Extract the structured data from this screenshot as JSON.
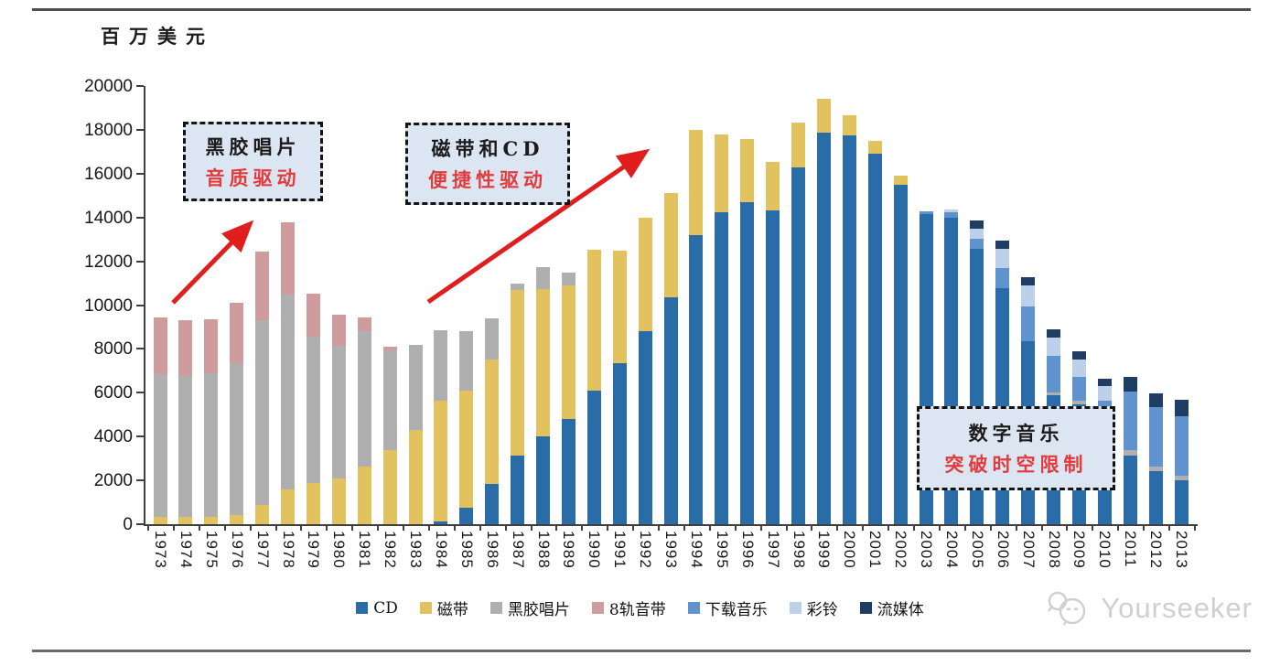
{
  "chart": {
    "unit_label": "百万美元"
  },
  "y_axis": {
    "ticks": [
      0,
      2000,
      4000,
      6000,
      8000,
      10000,
      12000,
      14000,
      16000,
      18000,
      20000
    ]
  },
  "legend": {
    "items": [
      {
        "key": "cd",
        "label": "CD"
      },
      {
        "key": "tape",
        "label": "磁带"
      },
      {
        "key": "vinyl",
        "label": "黑胶唱片"
      },
      {
        "key": "eight_track",
        "label": "8轨音带"
      },
      {
        "key": "download",
        "label": "下载音乐"
      },
      {
        "key": "ringtone",
        "label": "彩铃"
      },
      {
        "key": "streaming",
        "label": "流媒体"
      }
    ]
  },
  "annotations": [
    {
      "id": "vinyl-era",
      "line1": "黑胶唱片",
      "line2": "音质驱动"
    },
    {
      "id": "tape-cd-era",
      "line1": "磁带和CD",
      "line2": "便捷性驱动"
    },
    {
      "id": "digital-era",
      "line1": "数字音乐",
      "line2": "突破时空限制"
    }
  ],
  "watermark": {
    "text": "Yourseeker"
  },
  "colors": {
    "cd": "#2A6CA8",
    "tape": "#E2C25F",
    "vinyl": "#AFAFAF",
    "eight_track": "#CE9C9C",
    "download": "#5E93CE",
    "ringtone": "#BDD0E9",
    "streaming": "#1E3D63",
    "arrow_red": "#E11E1E",
    "callout_bg": "#DCE6F2",
    "axis": "#3F3F3F"
  },
  "chart_data": {
    "type": "bar",
    "stacked": true,
    "title": "",
    "ylabel": "百万美元",
    "unit": "million USD",
    "ylim": [
      0,
      20000
    ],
    "grid": false,
    "legend_position": "bottom",
    "categories": [
      "1973",
      "1974",
      "1975",
      "1976",
      "1977",
      "1978",
      "1979",
      "1980",
      "1981",
      "1982",
      "1983",
      "1984",
      "1985",
      "1986",
      "1987",
      "1988",
      "1989",
      "1990",
      "1991",
      "1992",
      "1993",
      "1994",
      "1995",
      "1996",
      "1997",
      "1998",
      "1999",
      "2000",
      "2001",
      "2002",
      "2003",
      "2004",
      "2005",
      "2006",
      "2007",
      "2008",
      "2009",
      "2010",
      "2011",
      "2012",
      "2013"
    ],
    "series": [
      {
        "key": "cd",
        "name": "CD",
        "color": "#2A6CA8",
        "values": [
          0,
          0,
          0,
          0,
          0,
          0,
          0,
          0,
          0,
          0,
          0,
          120,
          750,
          1850,
          3120,
          3995,
          4790,
          6080,
          7335,
          8795,
          10355,
          13205,
          14250,
          14700,
          14320,
          16270,
          17870,
          17760,
          16895,
          15475,
          14150,
          13990,
          12580,
          10770,
          8350,
          5900,
          5480,
          3650,
          3145,
          2420,
          2005
        ]
      },
      {
        "key": "tape",
        "name": "磁带",
        "color": "#E2C25F",
        "values": [
          330,
          330,
          340,
          420,
          890,
          1590,
          1870,
          2100,
          2630,
          3390,
          4300,
          5505,
          5330,
          5665,
          7555,
          6745,
          6120,
          6430,
          5145,
          5205,
          4755,
          4775,
          3550,
          2860,
          2225,
          2045,
          1530,
          900,
          600,
          420,
          0,
          0,
          0,
          0,
          0,
          0,
          0,
          0,
          0,
          0,
          0
        ]
      },
      {
        "key": "vinyl",
        "name": "黑胶唱片",
        "color": "#AFAFAF",
        "values": [
          6505,
          6450,
          6545,
          6940,
          8420,
          8880,
          6675,
          6030,
          6190,
          4530,
          3870,
          3235,
          2740,
          1865,
          305,
          980,
          560,
          0,
          0,
          0,
          0,
          0,
          0,
          0,
          0,
          0,
          0,
          0,
          0,
          0,
          0,
          0,
          0,
          0,
          0,
          100,
          170,
          0,
          250,
          210,
          205
        ]
      },
      {
        "key": "eight_track",
        "name": "8轨音带",
        "color": "#CE9C9C",
        "values": [
          2615,
          2530,
          2455,
          2760,
          3130,
          3290,
          1975,
          1430,
          600,
          170,
          0,
          0,
          0,
          0,
          0,
          0,
          0,
          0,
          0,
          0,
          0,
          0,
          0,
          0,
          0,
          0,
          0,
          0,
          0,
          0,
          0,
          0,
          0,
          0,
          0,
          0,
          0,
          0,
          0,
          0,
          0
        ]
      },
      {
        "key": "download",
        "name": "下载音乐",
        "color": "#5E93CE",
        "values": [
          0,
          0,
          0,
          0,
          0,
          0,
          0,
          0,
          0,
          0,
          0,
          0,
          0,
          0,
          0,
          0,
          0,
          0,
          0,
          0,
          0,
          0,
          0,
          0,
          0,
          0,
          0,
          0,
          0,
          0,
          140,
          230,
          445,
          910,
          1585,
          1680,
          1085,
          1975,
          2645,
          2715,
          2715
        ]
      },
      {
        "key": "ringtone",
        "name": "彩铃",
        "color": "#BDD0E9",
        "values": [
          0,
          0,
          0,
          0,
          0,
          0,
          0,
          0,
          0,
          0,
          0,
          0,
          0,
          0,
          0,
          0,
          0,
          0,
          0,
          0,
          0,
          0,
          0,
          0,
          0,
          0,
          0,
          0,
          0,
          0,
          0,
          130,
          460,
          900,
          945,
          835,
          765,
          695,
          0,
          0,
          0
        ]
      },
      {
        "key": "streaming",
        "name": "流媒体",
        "color": "#1E3D63",
        "values": [
          0,
          0,
          0,
          0,
          0,
          0,
          0,
          0,
          0,
          0,
          0,
          0,
          0,
          0,
          0,
          0,
          0,
          0,
          0,
          0,
          0,
          0,
          0,
          0,
          0,
          0,
          0,
          0,
          0,
          0,
          0,
          0,
          375,
          375,
          380,
          375,
          380,
          305,
          695,
          625,
          765
        ]
      }
    ]
  }
}
